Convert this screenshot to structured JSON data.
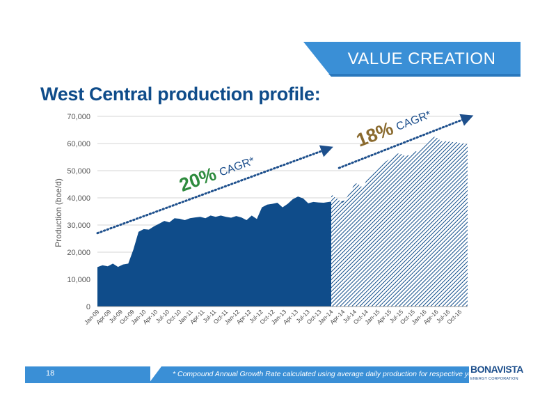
{
  "header": {
    "banner_label": "VALUE CREATION"
  },
  "page_title": "West Central production profile:",
  "footer": {
    "page_number": "18",
    "footnote": "* Compound Annual Growth Rate calculated using average daily production for respective years",
    "logo_text": "BONAVISTA",
    "logo_subtext": "ENERGY CORPORATION"
  },
  "colors": {
    "accent_blue": "#3a8fd6",
    "series_blue": "#0f4c8a",
    "title_blue": "#0f4c8a",
    "green_label": "#2e8b3e",
    "brown_label": "#8a6a2e"
  },
  "chart_data": {
    "type": "area",
    "title": "",
    "xlabel": "",
    "ylabel": "Production (boe/d)",
    "ylim": [
      0,
      70000
    ],
    "yticks": [
      0,
      10000,
      20000,
      30000,
      40000,
      50000,
      60000,
      70000
    ],
    "ytick_labels": [
      "0",
      "10,000",
      "20,000",
      "30,000",
      "40,000",
      "50,000",
      "60,000",
      "70,000"
    ],
    "xtick_labels": [
      "Jan-09",
      "Apr-09",
      "Jul-09",
      "Oct-09",
      "Jan-10",
      "Apr-10",
      "Jul-10",
      "Oct-10",
      "Jan-11",
      "Apr-11",
      "Jul-11",
      "Oct-11",
      "Jan-12",
      "Apr-12",
      "Jul-12",
      "Oct-12",
      "Jan-13",
      "Apr-13",
      "Jul-13",
      "Oct-13",
      "Jan-14",
      "Apr-14",
      "Jul-14",
      "Oct-14",
      "Jan-15",
      "Apr-15",
      "Jul-15",
      "Oct-15",
      "Jan-16",
      "Apr-16",
      "Jul-16",
      "Oct-16"
    ],
    "series": [
      {
        "style": "solid",
        "start": "Jan-09",
        "values": [
          14500,
          15200,
          14800,
          15800,
          14600,
          15500,
          15800,
          21000,
          27500,
          28500,
          28300,
          29500,
          30500,
          31500,
          31000,
          32500,
          32300,
          31800,
          32500,
          32800,
          33000,
          32500,
          33500,
          33000,
          33500,
          33000,
          32700,
          33300,
          32800,
          31800,
          33500,
          32200,
          36500,
          37500,
          37800,
          38200,
          36500,
          37800,
          39500,
          40500,
          39800,
          38000,
          38500,
          38300,
          38200,
          38500,
          38800,
          38400,
          39000,
          39200,
          39300,
          39100,
          39000,
          38900,
          39500,
          40400,
          39500,
          38800,
          38700,
          39400,
          40000,
          39500,
          40000,
          41500,
          42300,
          42800,
          43300,
          43600,
          43700,
          43500,
          43200,
          42900,
          42500
        ]
      },
      {
        "style": "hatched",
        "start": "Jan-14",
        "values": [
          41500,
          40300,
          39800,
          38900,
          38200,
          39500,
          41300,
          42800,
          45500,
          45200,
          44600,
          43600,
          46300,
          47500,
          48200,
          50300,
          51200,
          51500,
          52800,
          53500,
          54200,
          55100,
          56000,
          56300,
          56200,
          55600,
          55500,
          55800,
          56400,
          57200,
          56800,
          57900,
          58900,
          60200,
          61100,
          62300,
          62500,
          61600,
          60800,
          60900,
          60800,
          60700,
          60500,
          60600,
          60200,
          60100,
          60000,
          59700
        ]
      }
    ],
    "annotations": [
      {
        "rate": "20%",
        "text": "CAGR*",
        "from": [
          "Jan-09",
          27000
        ],
        "to": [
          "Dec-13",
          58000
        ]
      },
      {
        "rate": "18%",
        "text": "CAGR*",
        "from": [
          "Mar-14",
          51000
        ],
        "to": [
          "Dec-16",
          69500
        ]
      }
    ]
  }
}
